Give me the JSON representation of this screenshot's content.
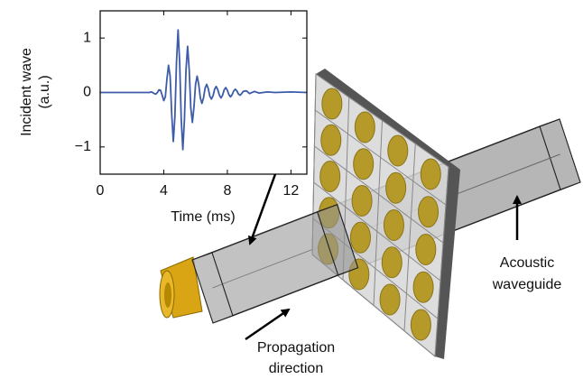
{
  "chart_data": {
    "type": "line",
    "xlabel": "Time (ms)",
    "ylabel": [
      "Incident wave",
      "(a.u.)"
    ],
    "color": "#3d5ca8",
    "xlim": [
      0,
      13
    ],
    "ylim": [
      -1.5,
      1.5
    ],
    "xticks": [
      0,
      4,
      8,
      12
    ],
    "yticks": [
      {
        "value": -1,
        "label": "−1"
      },
      0,
      1
    ],
    "x": [
      0,
      1,
      2,
      3,
      3.1,
      3.2,
      3.3,
      3.4,
      3.5,
      3.6,
      3.7,
      3.8,
      3.9,
      4.0,
      4.1,
      4.2,
      4.3,
      4.4,
      4.5,
      4.6,
      4.7,
      4.8,
      4.9,
      5.0,
      5.1,
      5.2,
      5.3,
      5.4,
      5.5,
      5.6,
      5.7,
      5.8,
      5.9,
      6.0,
      6.1,
      6.2,
      6.3,
      6.4,
      6.5,
      6.6,
      6.7,
      6.8,
      6.9,
      7.0,
      7.1,
      7.2,
      7.3,
      7.4,
      7.5,
      7.6,
      7.7,
      7.8,
      7.9,
      8.0,
      8.1,
      8.2,
      8.3,
      8.4,
      8.5,
      8.6,
      8.7,
      8.8,
      8.9,
      9.0,
      9.2,
      9.4,
      9.7,
      10,
      10.5,
      11,
      12,
      13
    ],
    "values": [
      0,
      0,
      0,
      0,
      0,
      0.01,
      0,
      -0.02,
      -0.03,
      0,
      0.05,
      0.04,
      -0.05,
      -0.15,
      -0.08,
      0.25,
      0.5,
      0.3,
      -0.4,
      -0.9,
      -0.45,
      0.55,
      1.15,
      0.55,
      -0.5,
      -1.05,
      -0.5,
      0.42,
      0.85,
      0.42,
      -0.28,
      -0.55,
      -0.27,
      0.15,
      0.3,
      0.15,
      -0.1,
      -0.2,
      -0.1,
      0.08,
      0.15,
      0.07,
      -0.07,
      -0.12,
      -0.06,
      0.06,
      0.11,
      0.05,
      -0.05,
      -0.1,
      -0.05,
      0.05,
      0.09,
      0.04,
      -0.04,
      -0.08,
      -0.04,
      0.03,
      0.06,
      0.03,
      -0.03,
      -0.05,
      -0.02,
      0.02,
      0.03,
      -0.02,
      0.02,
      -0.01,
      0.01,
      0,
      0.01,
      0
    ]
  },
  "labels": [
    {
      "lines": [
        "Propagation",
        "direction"
      ]
    },
    {
      "lines": [
        "Acoustic",
        "waveguide"
      ]
    }
  ]
}
